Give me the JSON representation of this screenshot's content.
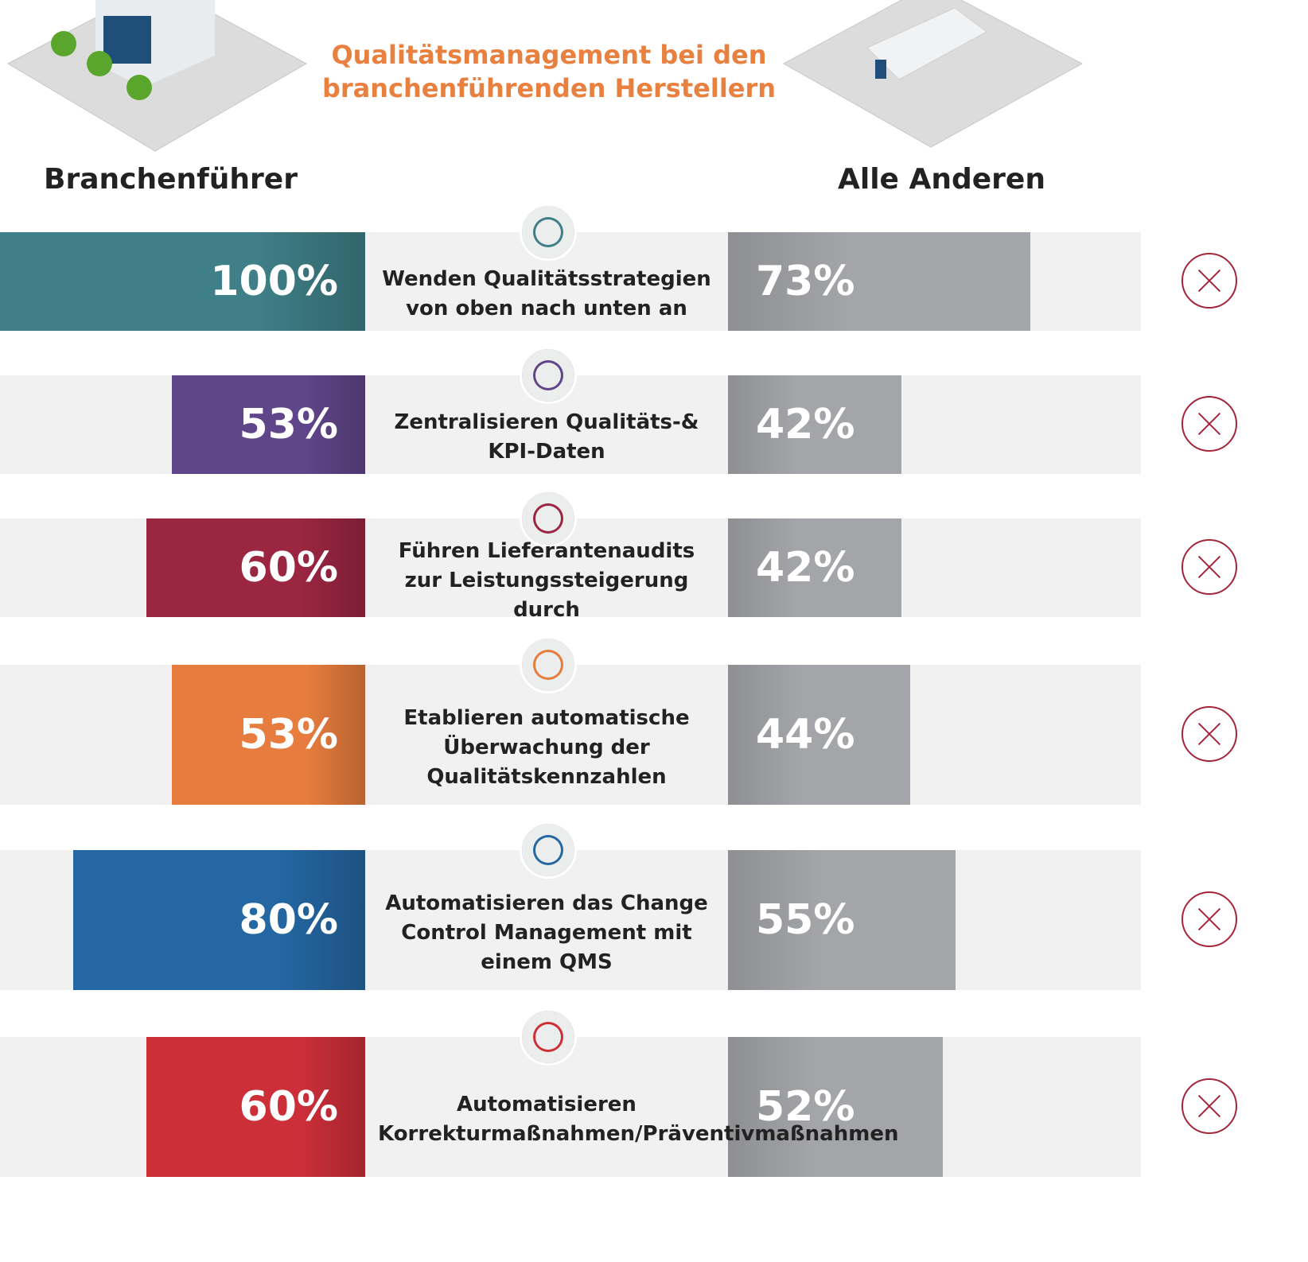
{
  "chart_data": {
    "type": "diverging-bar",
    "title": "Qualitätsmanagement bei den branchenführenden Herstellern",
    "left_label": "Branchenführer",
    "right_label": "Alle Anderen",
    "xlim": [
      0,
      100
    ],
    "categories": [
      "Wenden Qualitätsstrategien von oben nach unten an",
      "Zentralisieren Qualitäts-& KPI-Daten",
      "Führen Lieferantenaudits zur Leistungssteigerung durch",
      "Etablieren automatische Überwachung der Qualitätskennzahlen",
      "Automatisieren das Change Control Management mit einem QMS",
      "Automatisieren Korrekturmaßnahmen/Präventivmaßnahmen"
    ],
    "series": [
      {
        "name": "Branchenführer",
        "colors": [
          "#3f7f87",
          "#5f4589",
          "#9b2641",
          "#e67c3d",
          "#2467a3",
          "#cd2f39"
        ],
        "values": [
          100,
          53,
          60,
          53,
          80,
          60
        ],
        "value_labels": [
          "100%",
          "53%",
          "60%",
          "53%",
          "80%",
          "60%"
        ]
      },
      {
        "name": "Alle Anderen",
        "color": "#a4a5a8",
        "values": [
          73,
          42,
          42,
          44,
          55,
          52
        ],
        "value_labels": [
          "73%",
          "42%",
          "42%",
          "44%",
          "55%",
          "52%"
        ]
      }
    ]
  }
}
